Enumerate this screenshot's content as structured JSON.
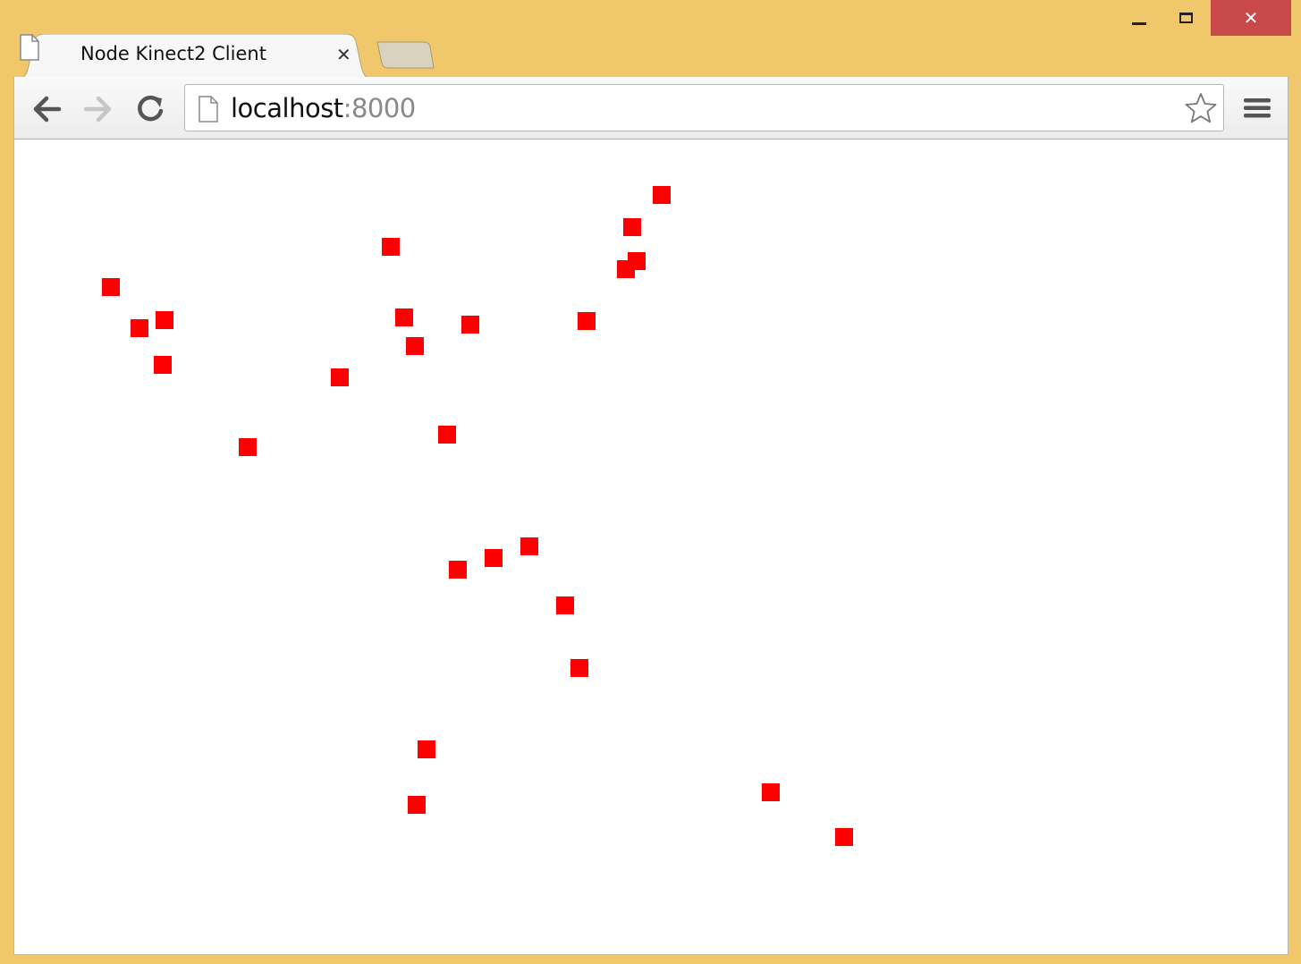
{
  "browser": {
    "tab": {
      "title": "Node Kinect2 Client",
      "close_glyph": "✕"
    },
    "address_bar": {
      "host": "localhost",
      "port": ":8000"
    },
    "window_controls": {
      "close_glyph": "✕"
    },
    "icons": {
      "tab_page": "page-icon",
      "back": "arrow-left-icon",
      "forward": "arrow-right-icon",
      "reload": "reload-icon",
      "address_page": "page-icon",
      "bookmark": "star-icon",
      "menu": "hamburger-menu-icon",
      "minimize": "minimize-icon",
      "maximize": "maximize-icon",
      "close": "close-icon"
    },
    "colors": {
      "frame": "#f0c76a",
      "close_button": "#c9484a",
      "joint": "#ff0000"
    }
  },
  "joint_marker_count": 26
}
